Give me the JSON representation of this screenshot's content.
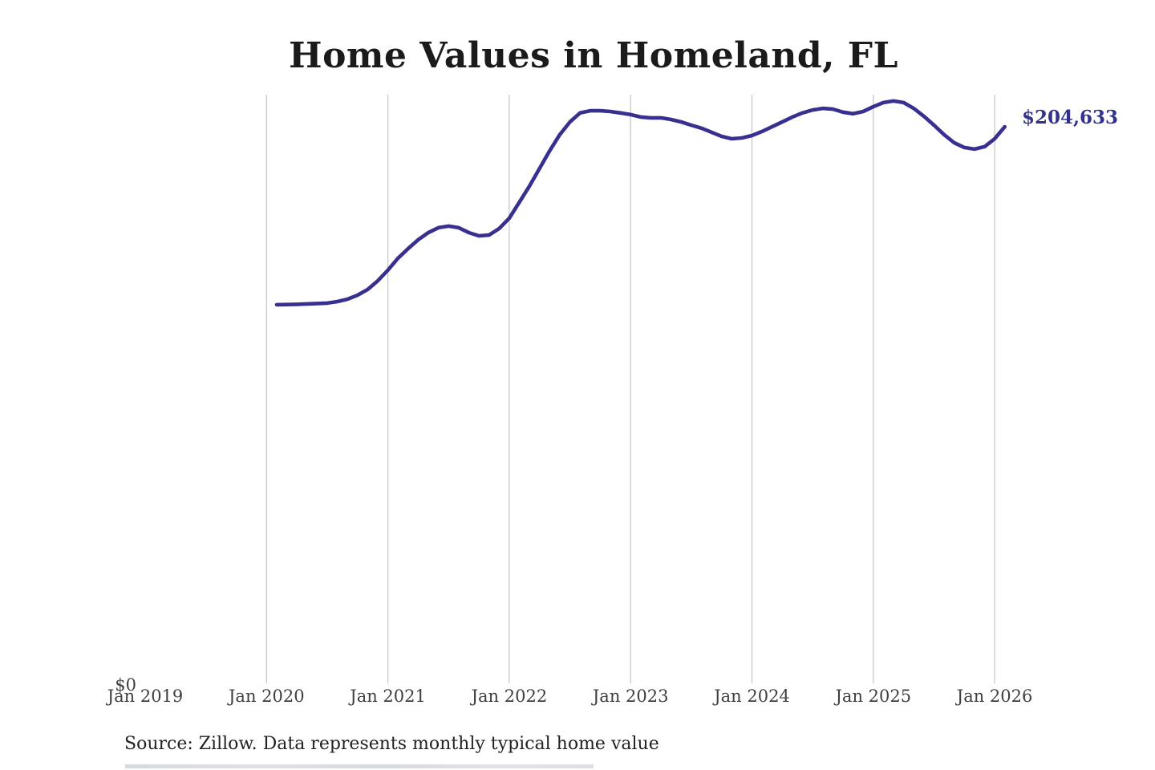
{
  "title": "Home Values in Homeland, FL",
  "annotation": {
    "latest_value_label": "$204,633"
  },
  "x_axis": {
    "tick_labels": [
      "Jan 2019",
      "Jan 2020",
      "Jan 2021",
      "Jan 2022",
      "Jan 2023",
      "Jan 2024",
      "Jan 2025",
      "Jan 2026"
    ]
  },
  "y_axis": {
    "zero_label": "$0"
  },
  "source_note": "Source: Zillow. Data represents monthly typical home value",
  "colors": {
    "line": "#373090",
    "annotation_text": "#33318e",
    "gridline": "#c8c8c8",
    "axis_text": "#3f3f3f",
    "title_text": "#1b1b1b",
    "source_text": "#222222"
  },
  "chart_data": {
    "type": "line",
    "title": "Home Values in Homeland, FL",
    "xlabel": "",
    "ylabel": "",
    "x_tick_labels": [
      "Jan 2019",
      "Jan 2020",
      "Jan 2021",
      "Jan 2022",
      "Jan 2023",
      "Jan 2024",
      "Jan 2025",
      "Jan 2026"
    ],
    "ylim": [
      0,
      216000
    ],
    "grid": "vertical-only",
    "gridline_years": [
      "Jan 2020",
      "Jan 2021",
      "Jan 2022",
      "Jan 2023",
      "Jan 2024",
      "Jan 2025",
      "Jan 2026"
    ],
    "legend": "none",
    "annotation": "$204,633",
    "latest_value": 204633,
    "series": [
      {
        "name": "Monthly typical home value",
        "frequency": "monthly",
        "x_start": "2020-02",
        "values": [
          139200,
          139250,
          139350,
          139500,
          139650,
          139800,
          140350,
          141250,
          142700,
          144800,
          148000,
          151900,
          156300,
          159800,
          163100,
          165700,
          167500,
          168100,
          167500,
          165700,
          164500,
          164800,
          167200,
          171000,
          176900,
          182800,
          189300,
          195800,
          201700,
          206400,
          209700,
          210500,
          210500,
          210250,
          209700,
          209100,
          208200,
          207900,
          207900,
          207300,
          206400,
          205200,
          204100,
          202600,
          201100,
          200200,
          200500,
          201400,
          202900,
          204650,
          206400,
          208200,
          209700,
          210800,
          211400,
          211100,
          210000,
          209400,
          210250,
          212000,
          213500,
          214100,
          213500,
          211400,
          208500,
          205200,
          201700,
          198750,
          197000,
          196400,
          197300,
          200200,
          204633
        ]
      }
    ]
  }
}
